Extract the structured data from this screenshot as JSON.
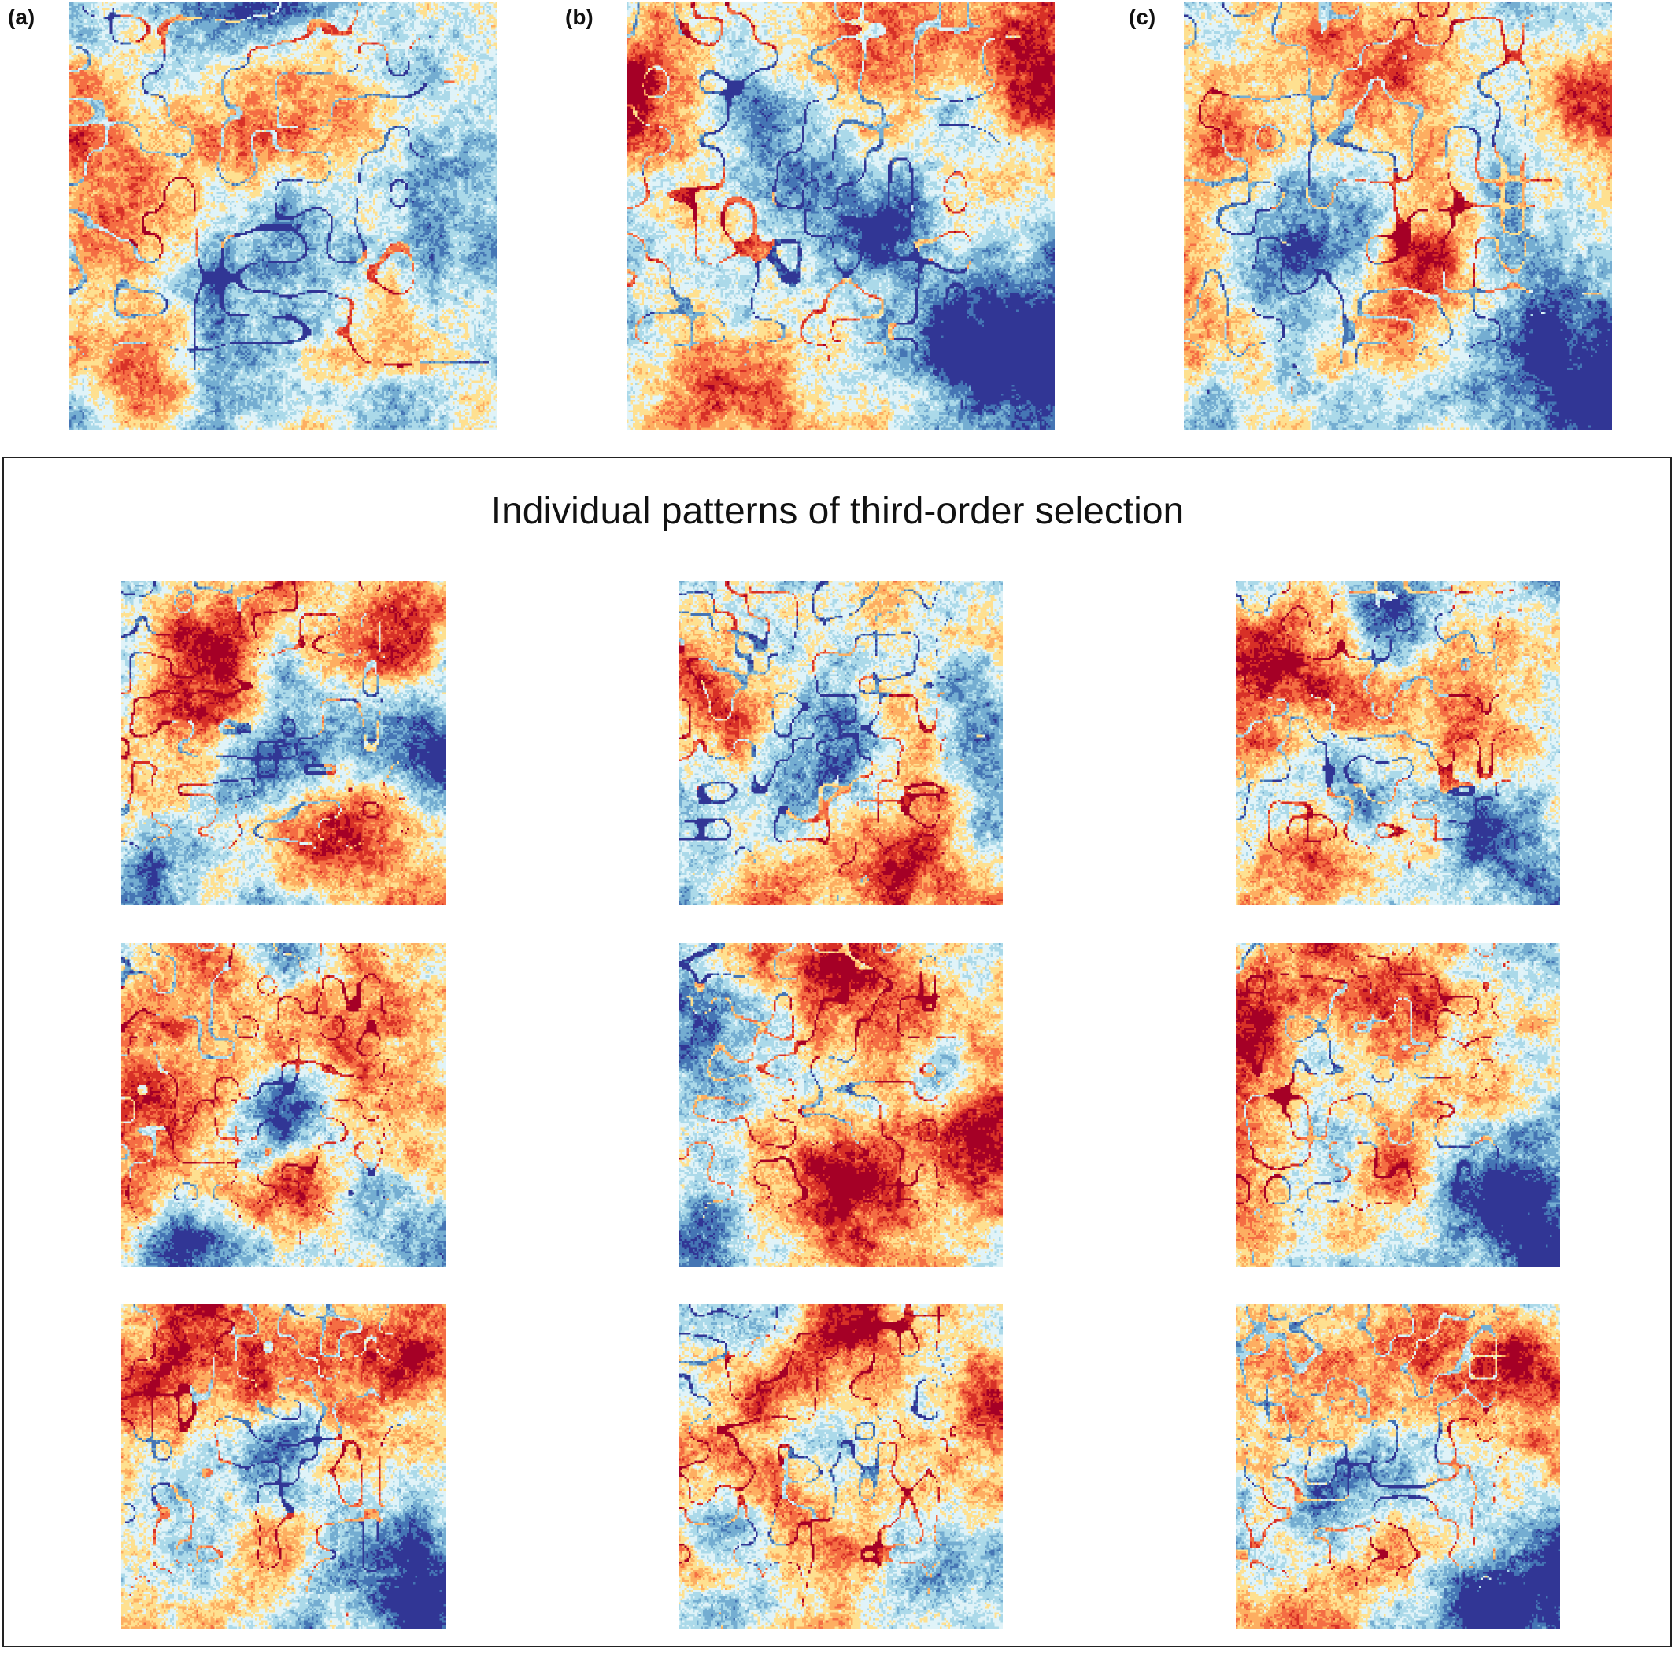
{
  "panels": [
    {
      "label": "(a)",
      "seed": 11,
      "hot": [
        [
          0.25,
          0.35,
          0.35
        ],
        [
          0.6,
          0.2,
          0.25
        ],
        [
          0.15,
          0.85,
          0.2
        ]
      ],
      "cold": [
        [
          0.45,
          0.05,
          0.3
        ],
        [
          0.45,
          0.6,
          0.28
        ],
        [
          0.95,
          0.55,
          0.25
        ],
        [
          0.4,
          0.95,
          0.25
        ]
      ]
    },
    {
      "label": "(b)",
      "seed": 23,
      "hot": [
        [
          0.05,
          0.2,
          0.35
        ],
        [
          0.55,
          0.05,
          0.3
        ],
        [
          0.9,
          0.1,
          0.25
        ],
        [
          0.2,
          0.9,
          0.25
        ]
      ],
      "cold": [
        [
          0.3,
          0.25,
          0.3
        ],
        [
          0.8,
          0.8,
          0.45
        ],
        [
          0.95,
          0.95,
          0.35
        ],
        [
          0.6,
          0.5,
          0.2
        ]
      ]
    },
    {
      "label": "(c)",
      "seed": 37,
      "hot": [
        [
          0.1,
          0.3,
          0.35
        ],
        [
          0.5,
          0.1,
          0.3
        ],
        [
          0.9,
          0.2,
          0.2
        ],
        [
          0.6,
          0.6,
          0.2
        ]
      ],
      "cold": [
        [
          0.3,
          0.55,
          0.3
        ],
        [
          0.85,
          0.85,
          0.4
        ],
        [
          0.95,
          0.95,
          0.35
        ]
      ]
    }
  ],
  "frame": {
    "title": "Individual patterns of third-order selection",
    "maps": [
      {
        "seed": 101,
        "hot": [
          [
            0.25,
            0.25,
            0.3
          ],
          [
            0.7,
            0.8,
            0.3
          ],
          [
            0.85,
            0.15,
            0.2
          ]
        ],
        "cold": [
          [
            0.45,
            0.6,
            0.25
          ],
          [
            0.1,
            0.9,
            0.2
          ],
          [
            0.95,
            0.55,
            0.2
          ]
        ]
      },
      {
        "seed": 102,
        "hot": [
          [
            0.1,
            0.4,
            0.3
          ],
          [
            0.5,
            0.15,
            0.25
          ],
          [
            0.7,
            0.9,
            0.2
          ]
        ],
        "cold": [
          [
            0.45,
            0.1,
            0.25
          ],
          [
            0.45,
            0.6,
            0.3
          ],
          [
            0.9,
            0.45,
            0.25
          ]
        ]
      },
      {
        "seed": 103,
        "hot": [
          [
            0.1,
            0.3,
            0.35
          ],
          [
            0.5,
            0.35,
            0.3
          ],
          [
            0.25,
            0.85,
            0.2
          ]
        ],
        "cold": [
          [
            0.45,
            0.05,
            0.25
          ],
          [
            0.4,
            0.7,
            0.25
          ],
          [
            0.9,
            0.8,
            0.4
          ]
        ]
      },
      {
        "seed": 104,
        "hot": [
          [
            0.15,
            0.25,
            0.35
          ],
          [
            0.75,
            0.2,
            0.25
          ],
          [
            0.55,
            0.75,
            0.2
          ]
        ],
        "cold": [
          [
            0.5,
            0.6,
            0.25
          ],
          [
            0.2,
            0.9,
            0.2
          ],
          [
            0.9,
            0.9,
            0.3
          ]
        ]
      },
      {
        "seed": 105,
        "hot": [
          [
            0.5,
            0.05,
            0.3
          ],
          [
            0.5,
            0.7,
            0.35
          ],
          [
            0.95,
            0.6,
            0.25
          ]
        ],
        "cold": [
          [
            0.1,
            0.35,
            0.35
          ],
          [
            0.15,
            0.85,
            0.3
          ],
          [
            0.8,
            0.4,
            0.15
          ]
        ]
      },
      {
        "seed": 106,
        "hot": [
          [
            0.05,
            0.2,
            0.35
          ],
          [
            0.45,
            0.15,
            0.3
          ],
          [
            0.5,
            0.55,
            0.25
          ]
        ],
        "cold": [
          [
            0.85,
            0.85,
            0.45
          ],
          [
            0.95,
            0.95,
            0.35
          ],
          [
            0.3,
            0.7,
            0.2
          ]
        ]
      },
      {
        "seed": 107,
        "hot": [
          [
            0.1,
            0.2,
            0.4
          ],
          [
            0.5,
            0.1,
            0.3
          ],
          [
            0.9,
            0.15,
            0.2
          ]
        ],
        "cold": [
          [
            0.85,
            0.85,
            0.45
          ],
          [
            0.95,
            0.95,
            0.35
          ],
          [
            0.5,
            0.4,
            0.15
          ]
        ]
      },
      {
        "seed": 108,
        "hot": [
          [
            0.3,
            0.5,
            0.3
          ],
          [
            0.5,
            0.1,
            0.25
          ],
          [
            0.95,
            0.3,
            0.2
          ]
        ],
        "cold": [
          [
            0.35,
            0.45,
            0.2
          ],
          [
            0.8,
            0.9,
            0.35
          ],
          [
            0.1,
            0.65,
            0.2
          ]
        ]
      },
      {
        "seed": 109,
        "hot": [
          [
            0.1,
            0.2,
            0.4
          ],
          [
            0.5,
            0.15,
            0.3
          ],
          [
            0.9,
            0.15,
            0.2
          ]
        ],
        "cold": [
          [
            0.8,
            0.85,
            0.45
          ],
          [
            0.95,
            0.95,
            0.35
          ],
          [
            0.3,
            0.6,
            0.2
          ]
        ]
      }
    ]
  },
  "palette": [
    "#313695",
    "#4575b4",
    "#74add1",
    "#abd9e9",
    "#e0f3f8",
    "#fee090",
    "#fdae61",
    "#f46d43",
    "#d73027",
    "#a50026"
  ]
}
